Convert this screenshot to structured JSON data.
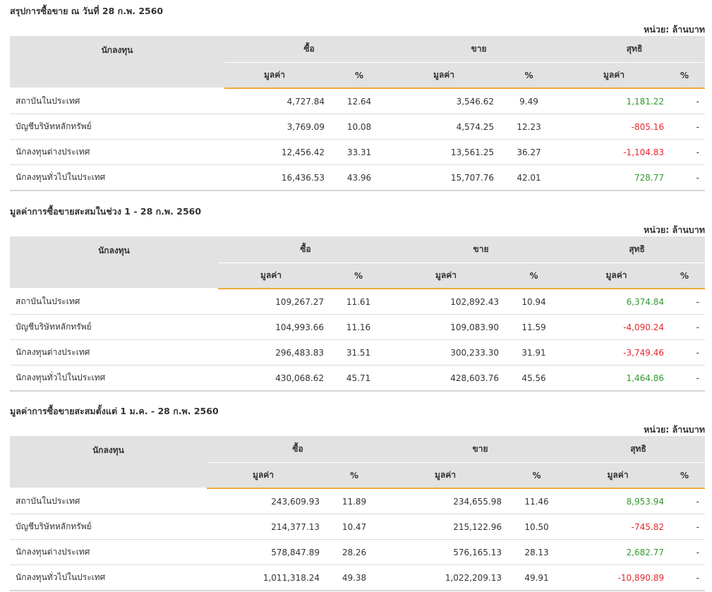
{
  "unit_label": "หน่วย: ล้านบาท",
  "headers": {
    "investor": "นักลงทุน",
    "buy": "ซื้อ",
    "sell": "ขาย",
    "net": "สุทธิ",
    "value": "มูลค่า",
    "percent": "%"
  },
  "sections": [
    {
      "title": "สรุปการซื้อขาย ณ วันที่ 28 ก.พ. 2560",
      "rows": [
        {
          "investor": "สถาบันในประเทศ",
          "buy_value": "4,727.84",
          "buy_pct": "12.64",
          "sell_value": "3,546.62",
          "sell_pct": "9.49",
          "net_value": "1,181.22",
          "net_pct": "-",
          "net_sign": "pos"
        },
        {
          "investor": "บัญชีบริษัทหลักทรัพย์",
          "buy_value": "3,769.09",
          "buy_pct": "10.08",
          "sell_value": "4,574.25",
          "sell_pct": "12.23",
          "net_value": "-805.16",
          "net_pct": "-",
          "net_sign": "neg"
        },
        {
          "investor": "นักลงทุนต่างประเทศ",
          "buy_value": "12,456.42",
          "buy_pct": "33.31",
          "sell_value": "13,561.25",
          "sell_pct": "36.27",
          "net_value": "-1,104.83",
          "net_pct": "-",
          "net_sign": "neg"
        },
        {
          "investor": "นักลงทุนทั่วไปในประเทศ",
          "buy_value": "16,436.53",
          "buy_pct": "43.96",
          "sell_value": "15,707.76",
          "sell_pct": "42.01",
          "net_value": "728.77",
          "net_pct": "-",
          "net_sign": "pos"
        }
      ]
    },
    {
      "title": "มูลค่าการซื้อขายสะสมในช่วง 1 - 28 ก.พ. 2560",
      "rows": [
        {
          "investor": "สถาบันในประเทศ",
          "buy_value": "109,267.27",
          "buy_pct": "11.61",
          "sell_value": "102,892.43",
          "sell_pct": "10.94",
          "net_value": "6,374.84",
          "net_pct": "-",
          "net_sign": "pos"
        },
        {
          "investor": "บัญชีบริษัทหลักทรัพย์",
          "buy_value": "104,993.66",
          "buy_pct": "11.16",
          "sell_value": "109,083.90",
          "sell_pct": "11.59",
          "net_value": "-4,090.24",
          "net_pct": "-",
          "net_sign": "neg"
        },
        {
          "investor": "นักลงทุนต่างประเทศ",
          "buy_value": "296,483.83",
          "buy_pct": "31.51",
          "sell_value": "300,233.30",
          "sell_pct": "31.91",
          "net_value": "-3,749.46",
          "net_pct": "-",
          "net_sign": "neg"
        },
        {
          "investor": "นักลงทุนทั่วไปในประเทศ",
          "buy_value": "430,068.62",
          "buy_pct": "45.71",
          "sell_value": "428,603.76",
          "sell_pct": "45.56",
          "net_value": "1,464.86",
          "net_pct": "-",
          "net_sign": "pos"
        }
      ]
    },
    {
      "title": "มูลค่าการซื้อขายสะสมตั้งแต่ 1 ม.ค. - 28 ก.พ. 2560",
      "rows": [
        {
          "investor": "สถาบันในประเทศ",
          "buy_value": "243,609.93",
          "buy_pct": "11.89",
          "sell_value": "234,655.98",
          "sell_pct": "11.46",
          "net_value": "8,953.94",
          "net_pct": "-",
          "net_sign": "pos"
        },
        {
          "investor": "บัญชีบริษัทหลักทรัพย์",
          "buy_value": "214,377.13",
          "buy_pct": "10.47",
          "sell_value": "215,122.96",
          "sell_pct": "10.50",
          "net_value": "-745.82",
          "net_pct": "-",
          "net_sign": "neg"
        },
        {
          "investor": "นักลงทุนต่างประเทศ",
          "buy_value": "578,847.89",
          "buy_pct": "28.26",
          "sell_value": "576,165.13",
          "sell_pct": "28.13",
          "net_value": "2,682.77",
          "net_pct": "-",
          "net_sign": "pos"
        },
        {
          "investor": "นักลงทุนทั่วไปในประเทศ",
          "buy_value": "1,011,318.24",
          "buy_pct": "49.38",
          "sell_value": "1,022,209.13",
          "sell_pct": "49.91",
          "net_value": "-10,890.89",
          "net_pct": "-",
          "net_sign": "neg"
        }
      ]
    }
  ],
  "colors": {
    "positive": "#2f9b2f",
    "negative": "#e8262a",
    "header_bg": "#e2e2e2",
    "accent_underline": "#f2a93b"
  }
}
